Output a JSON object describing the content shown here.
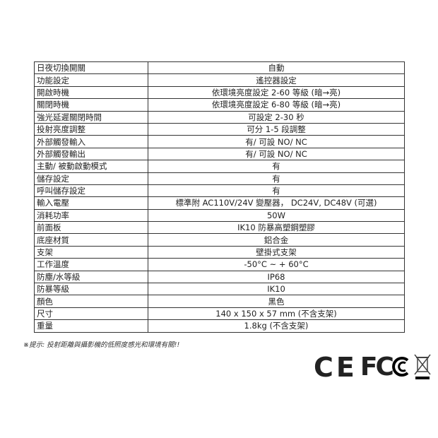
{
  "specs": [
    {
      "label": "日夜切換開關",
      "value": "自動"
    },
    {
      "label": "功能設定",
      "value": "遙控器設定"
    },
    {
      "label": "開啟時機",
      "value": "依環境亮度設定 2-60 等級 (暗→亮)"
    },
    {
      "label": "關閉時機",
      "value": "依環境亮度設定 6-80 等級 (暗→亮)"
    },
    {
      "label": "強光延遲關閉時間",
      "value": "可設定 2-30 秒"
    },
    {
      "label": "投射亮度調整",
      "value": "可分 1-5 段調整"
    },
    {
      "label": "外部觸發輸入",
      "value": "有/ 可設 NO/ NC"
    },
    {
      "label": "外部觸發輸出",
      "value": "有/ 可設 NO/ NC"
    },
    {
      "label": "主動/ 被動啟動模式",
      "value": "有"
    },
    {
      "label": "儲存設定",
      "value": "有"
    },
    {
      "label": "呼叫儲存設定",
      "value": "有"
    },
    {
      "label": "輸入電壓",
      "value": "標準附 AC110V/24V 變壓器， DC24V, DC48V (可選)"
    },
    {
      "label": "消耗功率",
      "value": "50W"
    },
    {
      "label": "前面板",
      "value": "IK10 防暴高塑鋼塑膠"
    },
    {
      "label": "底座材質",
      "value": "鋁合金"
    },
    {
      "label": "支架",
      "value": "壁掛式支架"
    },
    {
      "label": "工作溫度",
      "value": "-50°C ~ + 60°C"
    },
    {
      "label": "防塵/水等級",
      "value": "IP68"
    },
    {
      "label": "防暴等級",
      "value": "IK10"
    },
    {
      "label": "顏色",
      "value": "黑色"
    },
    {
      "label": "尺寸",
      "value": "140 x 150 x 57 mm (不含支架)"
    },
    {
      "label": "重量",
      "value": "1.8kg (不含支架)"
    }
  ],
  "note": "※提示: 投射距離與攝影機的低照度感光和環境有關!!",
  "logos": {
    "ce": "CE",
    "fcc": "FC",
    "weee": "weee-bin-icon"
  }
}
